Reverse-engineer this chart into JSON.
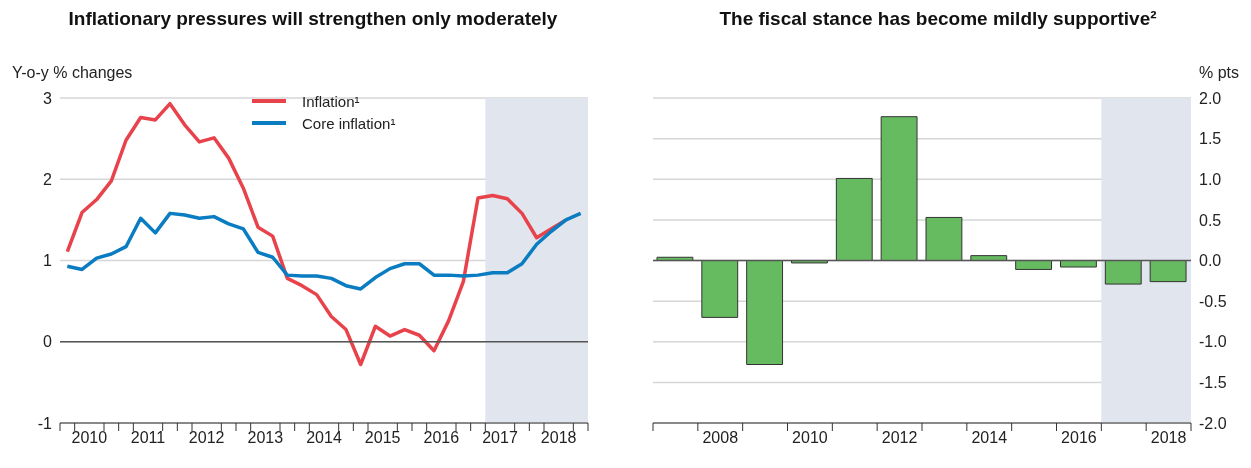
{
  "chart_data": [
    {
      "type": "line",
      "title": "Inflationary pressures will strengthen only moderately",
      "ylabel": "Y-o-y % changes",
      "x": [
        2010.125,
        2010.375,
        2010.625,
        2010.875,
        2011.125,
        2011.375,
        2011.625,
        2011.875,
        2012.125,
        2012.375,
        2012.625,
        2012.875,
        2013.125,
        2013.375,
        2013.625,
        2013.875,
        2014.125,
        2014.375,
        2014.625,
        2014.875,
        2015.125,
        2015.375,
        2015.625,
        2015.875,
        2016.125,
        2016.375,
        2016.625,
        2016.875,
        2017.125,
        2017.375,
        2017.625,
        2017.875,
        2018.125,
        2018.375,
        2018.625,
        2018.875
      ],
      "series": [
        {
          "name": "Inflation¹",
          "color": "#e8424a",
          "values": [
            1.11,
            1.59,
            1.75,
            1.98,
            2.48,
            2.76,
            2.73,
            2.93,
            2.67,
            2.46,
            2.51,
            2.26,
            1.89,
            1.41,
            1.3,
            0.78,
            0.69,
            0.58,
            0.31,
            0.15,
            -0.28,
            0.19,
            0.07,
            0.15,
            0.08,
            -0.11,
            0.26,
            0.74,
            1.77,
            1.8,
            1.76,
            1.58,
            1.28,
            1.39,
            1.5,
            null
          ]
        },
        {
          "name": "Core inflation¹",
          "color": "#0a7cc1",
          "values": [
            0.93,
            0.89,
            1.03,
            1.08,
            1.17,
            1.52,
            1.34,
            1.58,
            1.56,
            1.52,
            1.54,
            1.45,
            1.39,
            1.1,
            1.04,
            0.82,
            0.81,
            0.81,
            0.78,
            0.69,
            0.65,
            0.79,
            0.9,
            0.96,
            0.96,
            0.82,
            0.82,
            0.81,
            0.82,
            0.85,
            0.85,
            0.96,
            1.2,
            1.36,
            1.5,
            1.58
          ]
        }
      ],
      "xlim": [
        2010,
        2019
      ],
      "xticks": [
        {
          "value": 2010,
          "label": null
        },
        {
          "value": 2010.25,
          "label": null
        },
        {
          "value": 2010.5,
          "label": "2010"
        },
        {
          "value": 2010.75,
          "label": null
        },
        {
          "value": 2011,
          "label": null
        },
        {
          "value": 2011.25,
          "label": null
        },
        {
          "value": 2011.5,
          "label": "2011"
        },
        {
          "value": 2011.75,
          "label": null
        },
        {
          "value": 2012,
          "label": null
        },
        {
          "value": 2012.25,
          "label": null
        },
        {
          "value": 2012.5,
          "label": "2012"
        },
        {
          "value": 2012.75,
          "label": null
        },
        {
          "value": 2013,
          "label": null
        },
        {
          "value": 2013.25,
          "label": null
        },
        {
          "value": 2013.5,
          "label": "2013"
        },
        {
          "value": 2013.75,
          "label": null
        },
        {
          "value": 2014,
          "label": null
        },
        {
          "value": 2014.25,
          "label": null
        },
        {
          "value": 2014.5,
          "label": "2014"
        },
        {
          "value": 2014.75,
          "label": null
        },
        {
          "value": 2015,
          "label": null
        },
        {
          "value": 2015.25,
          "label": null
        },
        {
          "value": 2015.5,
          "label": "2015"
        },
        {
          "value": 2015.75,
          "label": null
        },
        {
          "value": 2016,
          "label": null
        },
        {
          "value": 2016.25,
          "label": null
        },
        {
          "value": 2016.5,
          "label": "2016"
        },
        {
          "value": 2016.75,
          "label": null
        },
        {
          "value": 2017,
          "label": null
        },
        {
          "value": 2017.25,
          "label": null
        },
        {
          "value": 2017.5,
          "label": "2017"
        },
        {
          "value": 2017.75,
          "label": null
        },
        {
          "value": 2018,
          "label": null
        },
        {
          "value": 2018.25,
          "label": null
        },
        {
          "value": 2018.5,
          "label": "2018"
        },
        {
          "value": 2018.75,
          "label": null
        },
        {
          "value": 2019,
          "label": null
        }
      ],
      "ylim": [
        -1,
        3
      ],
      "yticks": [
        -1,
        0,
        1,
        2,
        3
      ],
      "grid": "y",
      "legend": "top",
      "ref_lines": [
        {
          "axis": "y",
          "value": 0,
          "color": "#555555"
        }
      ],
      "bands": [
        {
          "axis": "x",
          "from": 2017.25,
          "to": 2019,
          "color": "#e1e5ed"
        }
      ]
    },
    {
      "type": "bar",
      "title": "The fiscal stance has become mildly supportive²",
      "y2label": "% pts",
      "x": [
        2007,
        2008,
        2009,
        2010,
        2011,
        2012,
        2013,
        2014,
        2015,
        2016,
        2017,
        2018
      ],
      "series": [
        {
          "color": "#66bb61",
          "axis": "y2",
          "values": [
            0.04,
            -0.7,
            -1.28,
            -0.03,
            1.01,
            1.77,
            0.53,
            0.06,
            -0.11,
            -0.08,
            -0.29,
            -0.26
          ]
        }
      ],
      "xlim": [
        2006.5,
        2018.5
      ],
      "xticks": [
        {
          "value": 2006.5,
          "label": null
        },
        {
          "value": 2007.5,
          "label": null
        },
        2008,
        {
          "value": 2008.5,
          "label": null
        },
        {
          "value": 2009.5,
          "label": null
        },
        2010,
        {
          "value": 2010.5,
          "label": null
        },
        {
          "value": 2011.5,
          "label": null
        },
        2012,
        {
          "value": 2012.5,
          "label": null
        },
        {
          "value": 2013.5,
          "label": null
        },
        2014,
        {
          "value": 2014.5,
          "label": null
        },
        {
          "value": 2015.5,
          "label": null
        },
        2016,
        {
          "value": 2016.5,
          "label": null
        },
        {
          "value": 2017.5,
          "label": null
        },
        2018,
        {
          "value": 2018.5,
          "label": null
        }
      ],
      "y2lim": [
        -2,
        2
      ],
      "y2ticks": [
        {
          "value": -2,
          "label": "-2.0"
        },
        {
          "value": -1.5,
          "label": "-1.5"
        },
        {
          "value": -1,
          "label": "-1.0"
        },
        {
          "value": -0.5,
          "label": "-0.5"
        },
        {
          "value": 0,
          "label": "0.0"
        },
        {
          "value": 0.5,
          "label": "0.5"
        },
        {
          "value": 1,
          "label": "1.0"
        },
        {
          "value": 1.5,
          "label": "1.5"
        },
        {
          "value": 2,
          "label": "2.0"
        }
      ],
      "grid": "y",
      "ref_lines": [
        {
          "axis": "y2",
          "value": 0,
          "color": "#555555"
        }
      ],
      "bands": [
        {
          "axis": "x",
          "from": 2016.5,
          "to": 2018.5,
          "color": "#e1e5ed"
        }
      ]
    }
  ]
}
